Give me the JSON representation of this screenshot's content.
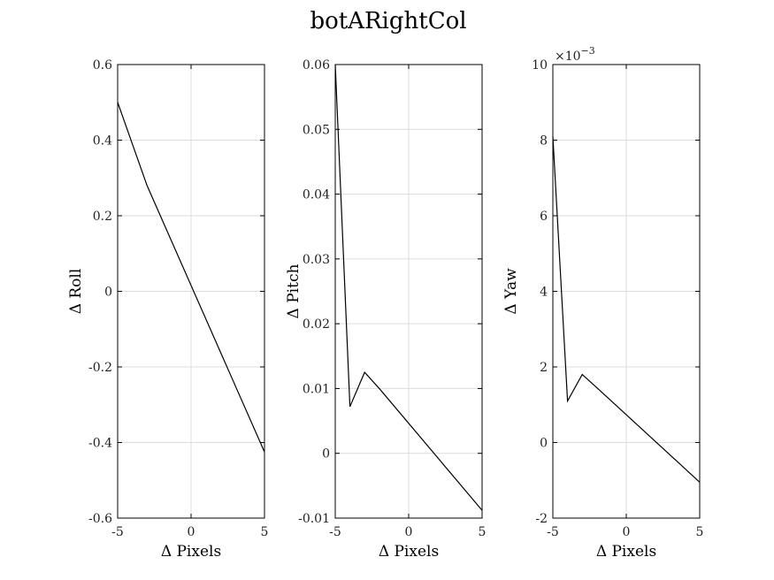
{
  "figure_title": "botARightCol",
  "chart_data": [
    {
      "type": "line",
      "xlabel": "Δ Pixels",
      "ylabel": "Δ Roll",
      "xlim": [
        -5,
        5
      ],
      "ylim": [
        -0.6,
        0.6
      ],
      "xticks": [
        -5,
        0,
        5
      ],
      "xtick_labels": [
        "-5",
        "0",
        "5"
      ],
      "yticks": [
        -0.6,
        -0.4,
        -0.2,
        0,
        0.2,
        0.4,
        0.6
      ],
      "ytick_labels": [
        "-0.6",
        "-0.4",
        "-0.2",
        "0",
        "0.2",
        "0.4",
        "0.6"
      ],
      "grid": true,
      "x": [
        -5,
        -3,
        5
      ],
      "y": [
        0.5,
        0.28,
        -0.425
      ]
    },
    {
      "type": "line",
      "xlabel": "Δ Pixels",
      "ylabel": "Δ Pitch",
      "xlim": [
        -5,
        5
      ],
      "ylim": [
        -0.01,
        0.06
      ],
      "xticks": [
        -5,
        0,
        5
      ],
      "xtick_labels": [
        "-5",
        "0",
        "5"
      ],
      "yticks": [
        -0.01,
        0,
        0.01,
        0.02,
        0.03,
        0.04,
        0.05,
        0.06
      ],
      "ytick_labels": [
        "-0.01",
        "0",
        "0.01",
        "0.02",
        "0.03",
        "0.04",
        "0.05",
        "0.06"
      ],
      "grid": true,
      "x": [
        -5,
        -4,
        -3,
        -2,
        5
      ],
      "y": [
        0.06,
        0.0072,
        0.0125,
        0.01,
        -0.0088
      ]
    },
    {
      "type": "line",
      "xlabel": "Δ Pixels",
      "ylabel": "Δ Yaw",
      "exponent_label": "×10",
      "exponent_power": "−3",
      "xlim": [
        -5,
        5
      ],
      "ylim": [
        -2,
        10
      ],
      "xticks": [
        -5,
        0,
        5
      ],
      "xtick_labels": [
        "-5",
        "0",
        "5"
      ],
      "yticks": [
        -2,
        0,
        2,
        4,
        6,
        8,
        10
      ],
      "ytick_labels": [
        "-2",
        "0",
        "2",
        "4",
        "6",
        "8",
        "10"
      ],
      "grid": true,
      "x": [
        -5,
        -4,
        -3,
        -2,
        5
      ],
      "y": [
        8.1,
        1.1,
        1.8,
        1.45,
        -1.05
      ]
    }
  ]
}
